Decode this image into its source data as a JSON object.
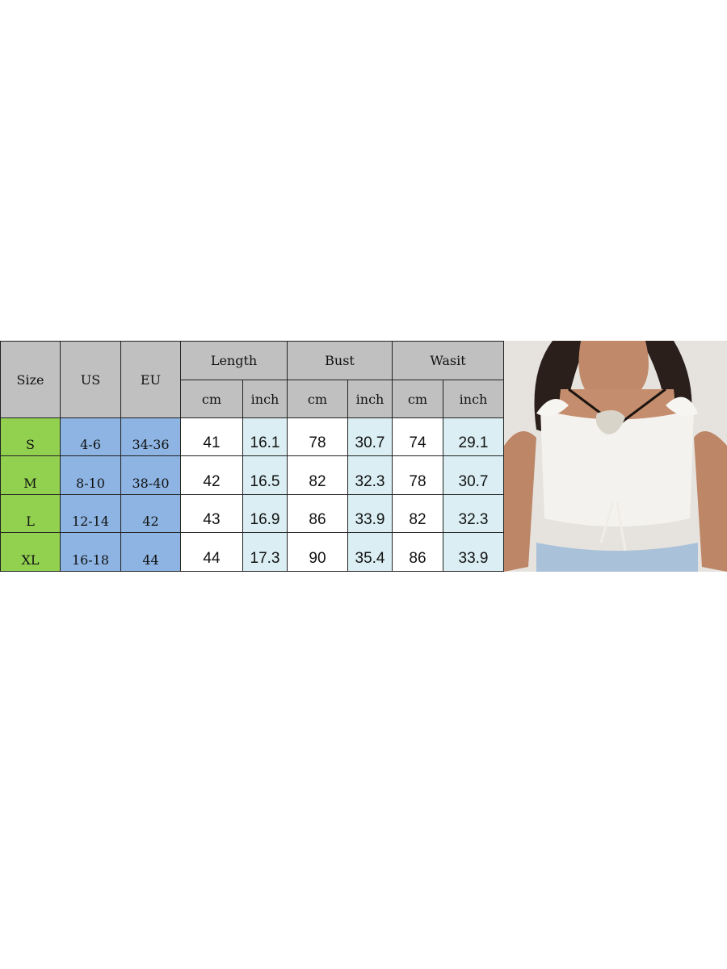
{
  "size_chart": {
    "headers": {
      "size": "Size",
      "us": "US",
      "eu": "EU",
      "length": "Length",
      "bust": "Bust",
      "waist": "Wasit",
      "cm": "cm",
      "inch": "inch"
    },
    "rows": [
      {
        "size": "S",
        "us": "4-6",
        "eu": "34-36",
        "length_cm": "41",
        "length_in": "16.1",
        "bust_cm": "78",
        "bust_in": "30.7",
        "waist_cm": "74",
        "waist_in": "29.1"
      },
      {
        "size": "M",
        "us": "8-10",
        "eu": "38-40",
        "length_cm": "42",
        "length_in": "16.5",
        "bust_cm": "82",
        "bust_in": "32.3",
        "waist_cm": "78",
        "waist_in": "30.7"
      },
      {
        "size": "L",
        "us": "12-14",
        "eu": "42",
        "length_cm": "43",
        "length_in": "16.9",
        "bust_cm": "86",
        "bust_in": "33.9",
        "waist_cm": "82",
        "waist_in": "32.3"
      },
      {
        "size": "XL",
        "us": "16-18",
        "eu": "44",
        "length_cm": "44",
        "length_in": "17.3",
        "bust_cm": "90",
        "bust_in": "35.4",
        "waist_cm": "86",
        "waist_in": "33.9"
      }
    ],
    "colors": {
      "header": "#c0c0c0",
      "size_col": "#92d050",
      "us_eu_cols": "#8db4e2",
      "inch_cols": "#daeef3"
    }
  },
  "product_photo": {
    "description_icon": "model-wearing-white-ruffle-crop-top"
  }
}
